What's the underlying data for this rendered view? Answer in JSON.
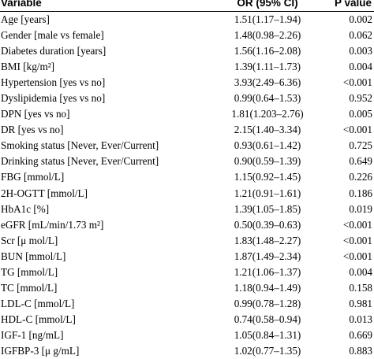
{
  "table": {
    "headers": {
      "variable": "Variable",
      "or": "OR (95% CI)",
      "p": "P value"
    },
    "rows": [
      {
        "variable": "Age [years]",
        "or": "1.51(1.17–1.94)",
        "p": "0.002"
      },
      {
        "variable": "Gender [male vs female]",
        "or": "1.48(0.98–2.26)",
        "p": "0.062"
      },
      {
        "variable": "Diabetes duration [years]",
        "or": "1.56(1.16–2.08)",
        "p": "0.003"
      },
      {
        "variable": "BMI [kg/m²]",
        "or": "1.39(1.11–1.73)",
        "p": "0.004"
      },
      {
        "variable": "Hypertension [yes vs no]",
        "or": "3.93(2.49–6.36)",
        "p": "<0.001"
      },
      {
        "variable": "Dyslipidemia [yes vs no]",
        "or": "0.99(0.64–1.53)",
        "p": "0.952"
      },
      {
        "variable": "DPN [yes vs no]",
        "or": "1.81(1.203–2.76)",
        "p": "0.005"
      },
      {
        "variable": "DR [yes vs no]",
        "or": "2.15(1.40–3.34)",
        "p": "<0.001"
      },
      {
        "variable": "Smoking status [Never, Ever/Current]",
        "or": "0.93(0.61–1.42)",
        "p": "0.725"
      },
      {
        "variable": "Drinking status [Never, Ever/Current]",
        "or": "0.90(0.59–1.39)",
        "p": "0.649"
      },
      {
        "variable": "FBG [mmol/L]",
        "or": "1.15(0.92–1.45)",
        "p": "0.226"
      },
      {
        "variable": "2H-OGTT [mmol/L]",
        "or": "1.21(0.91–1.61)",
        "p": "0.186"
      },
      {
        "variable": "HbA1c [%]",
        "or": "1.39(1.05–1.85)",
        "p": "0.019"
      },
      {
        "variable": "eGFR [mL/min/1.73 m²]",
        "or": "0.50(0.39–0.63)",
        "p": "<0.001"
      },
      {
        "variable": "Scr [μ mol/L]",
        "or": "1.83(1.48–2.27)",
        "p": "<0.001"
      },
      {
        "variable": "BUN [mmol/L]",
        "or": "1.87(1.49–2.34)",
        "p": "<0.001"
      },
      {
        "variable": "TG [mmol/L]",
        "or": "1.21(1.06–1.37)",
        "p": "0.004"
      },
      {
        "variable": "TC [mmol/L]",
        "or": "1.18(0.94–1.49)",
        "p": "0.158"
      },
      {
        "variable": "LDL-C [mmol/L]",
        "or": "0.99(0.78–1.28)",
        "p": "0.981"
      },
      {
        "variable": "HDL-C [mmol/L]",
        "or": "0.74(0.58–0.94)",
        "p": "0.013"
      },
      {
        "variable": "IGF-1 [ng/mL]",
        "or": "1.05(0.84–1.31)",
        "p": "0.669"
      },
      {
        "variable": "IGFBP-3 [μ g/mL]",
        "or": "1.02(0.77–1.35)",
        "p": "0.883"
      }
    ]
  }
}
